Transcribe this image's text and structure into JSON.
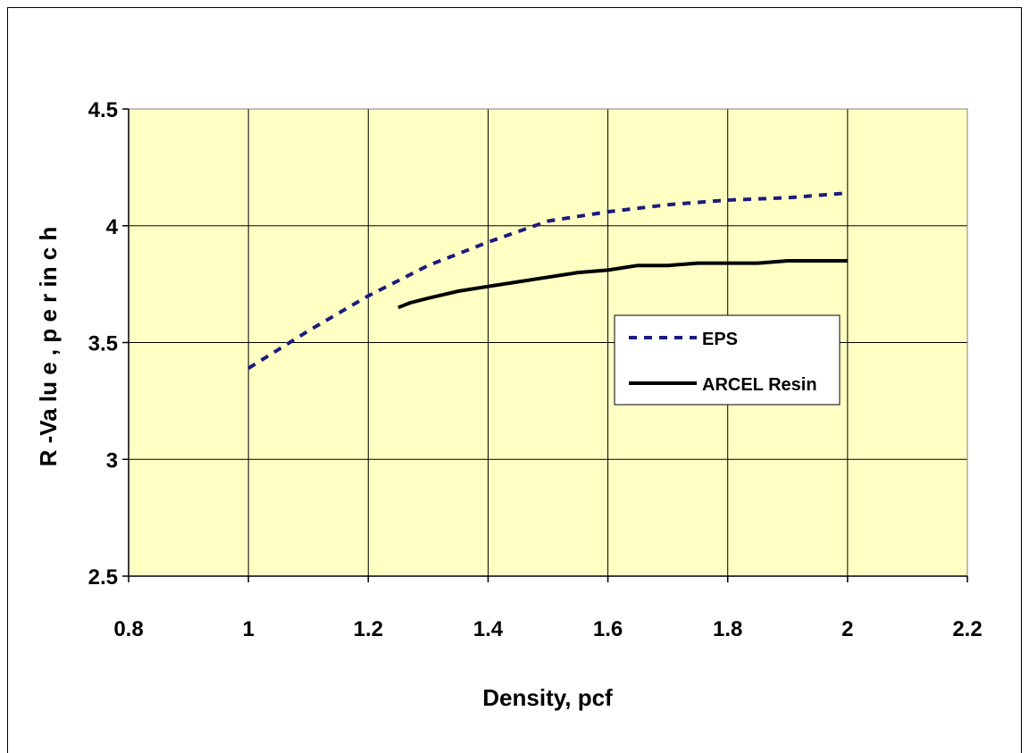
{
  "colors": {
    "plot_bg": "#ffffc4",
    "grid": "#000000",
    "eps": "#1c1c7c",
    "arcel": "#000000"
  },
  "chart_data": {
    "type": "line",
    "title": "",
    "xlabel": "Density, pcf",
    "ylabel": "R -Va lu e , p e r in c h",
    "xlim": [
      0.8,
      2.2
    ],
    "ylim": [
      2.5,
      4.5
    ],
    "x_ticks": [
      0.8,
      1,
      1.2,
      1.4,
      1.6,
      1.8,
      2,
      2.2
    ],
    "x_tick_labels": [
      "0.8",
      "1",
      "1.2",
      "1.4",
      "1.6",
      "1.8",
      "2",
      "2.2"
    ],
    "y_ticks": [
      2.5,
      3,
      3.5,
      4,
      4.5
    ],
    "y_tick_labels": [
      "2.5",
      "3",
      "3.5",
      "4",
      "4.5"
    ],
    "grid": true,
    "legend_position": "right",
    "series": [
      {
        "name": "EPS",
        "style": "dashed",
        "color": "#1c1c7c",
        "x": [
          1.0,
          1.1,
          1.2,
          1.3,
          1.4,
          1.5,
          1.6,
          1.7,
          1.8,
          1.9,
          2.0
        ],
        "y": [
          3.39,
          3.55,
          3.7,
          3.83,
          3.93,
          4.02,
          4.06,
          4.09,
          4.11,
          4.12,
          4.14
        ]
      },
      {
        "name": "ARCEL Resin",
        "style": "solid",
        "color": "#000000",
        "x": [
          1.25,
          1.27,
          1.3,
          1.35,
          1.4,
          1.45,
          1.5,
          1.55,
          1.6,
          1.65,
          1.7,
          1.75,
          1.8,
          1.85,
          1.9,
          1.95,
          2.0
        ],
        "y": [
          3.65,
          3.67,
          3.69,
          3.72,
          3.74,
          3.76,
          3.78,
          3.8,
          3.81,
          3.83,
          3.83,
          3.84,
          3.84,
          3.84,
          3.85,
          3.85,
          3.85
        ]
      }
    ]
  }
}
